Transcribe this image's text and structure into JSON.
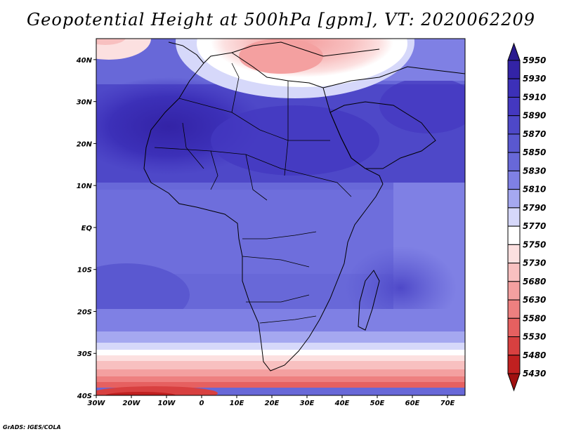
{
  "title": "Geopotential Height at 500hPa [gpm], VT: 2020062209",
  "credit": "GrADS: IGES/COLA",
  "map": {
    "variable": "Geopotential Height at 500hPa",
    "units": "gpm",
    "valid_time": "2020062209",
    "lon_range": [
      -30,
      75
    ],
    "lat_range": [
      -40,
      45
    ],
    "lon_ticks": [
      "30W",
      "20W",
      "10W",
      "0",
      "10E",
      "20E",
      "30E",
      "40E",
      "50E",
      "60E",
      "70E"
    ],
    "lat_ticks": [
      "40S",
      "30S",
      "20S",
      "10S",
      "EQ",
      "10N",
      "20N",
      "30N",
      "40N"
    ]
  },
  "colorbar": {
    "levels": [
      "5950",
      "5930",
      "5910",
      "5890",
      "5870",
      "5850",
      "5830",
      "5810",
      "5790",
      "5770",
      "5750",
      "5730",
      "5680",
      "5630",
      "5580",
      "5530",
      "5480",
      "5430"
    ],
    "colors": [
      "#2a1a8f",
      "#3323a6",
      "#3c30b8",
      "#4438c0",
      "#4e48c8",
      "#5a58d0",
      "#6868d8",
      "#7f80e4",
      "#a5a8f0",
      "#d6d8fa",
      "#ffffff",
      "#fce0e0",
      "#f8c0c0",
      "#f4a0a0",
      "#ee8080",
      "#e66060",
      "#d84040",
      "#c02020",
      "#a01010"
    ]
  }
}
